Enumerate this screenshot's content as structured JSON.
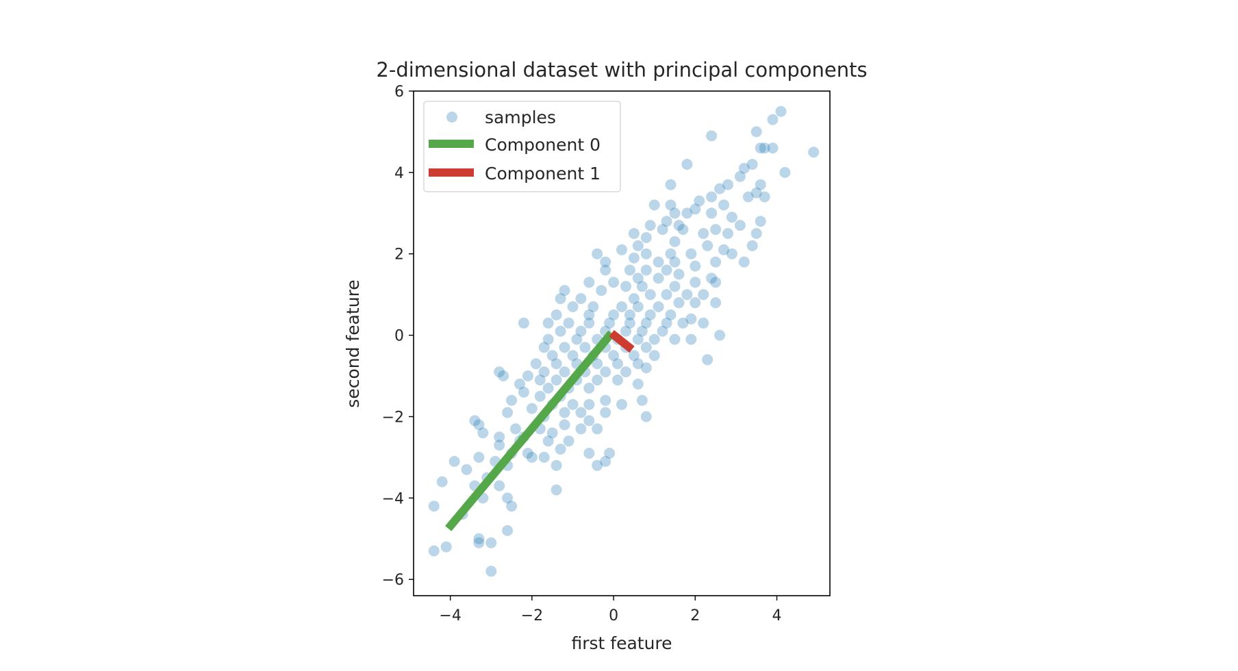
{
  "chart_data": {
    "type": "scatter",
    "title": "2-dimensional dataset with principal components",
    "xlabel": "first feature",
    "ylabel": "second feature",
    "xlim": [
      -4.9,
      5.3
    ],
    "ylim": [
      -6.4,
      6.0
    ],
    "xticks": [
      -4,
      -2,
      0,
      2,
      4
    ],
    "yticks": [
      -6,
      -4,
      -2,
      0,
      2,
      4,
      6
    ],
    "xtick_labels": [
      "−4",
      "−2",
      "0",
      "2",
      "4"
    ],
    "ytick_labels": [
      "−6",
      "−4",
      "−2",
      "0",
      "2",
      "4",
      "6"
    ],
    "grid": false,
    "legend_placement": "upper-left",
    "colors": {
      "samples": "#1f77b4",
      "component0": "#55a84a",
      "component1": "#cc3c33",
      "axes": "#000000"
    },
    "samples": {
      "name": "samples",
      "alpha": 0.3,
      "points": [
        [
          4.1,
          5.5
        ],
        [
          3.9,
          5.3
        ],
        [
          3.5,
          5.0
        ],
        [
          4.9,
          4.5
        ],
        [
          3.6,
          4.6
        ],
        [
          3.9,
          4.6
        ],
        [
          3.7,
          4.6
        ],
        [
          2.4,
          4.9
        ],
        [
          1.8,
          4.2
        ],
        [
          3.4,
          4.2
        ],
        [
          3.2,
          4.1
        ],
        [
          4.2,
          4.0
        ],
        [
          3.1,
          3.9
        ],
        [
          3.6,
          3.7
        ],
        [
          2.6,
          3.6
        ],
        [
          2.8,
          3.7
        ],
        [
          1.4,
          3.7
        ],
        [
          3.5,
          3.5
        ],
        [
          2.4,
          3.4
        ],
        [
          3.7,
          3.4
        ],
        [
          3.3,
          3.4
        ],
        [
          2.1,
          3.3
        ],
        [
          2.7,
          3.2
        ],
        [
          1.0,
          3.2
        ],
        [
          1.4,
          3.2
        ],
        [
          2.0,
          3.1
        ],
        [
          2.4,
          3.0
        ],
        [
          1.8,
          3.0
        ],
        [
          1.5,
          3.0
        ],
        [
          2.9,
          2.9
        ],
        [
          3.6,
          2.8
        ],
        [
          1.3,
          2.8
        ],
        [
          3.1,
          2.7
        ],
        [
          1.6,
          2.7
        ],
        [
          0.9,
          2.7
        ],
        [
          2.5,
          2.6
        ],
        [
          1.7,
          2.6
        ],
        [
          2.2,
          2.5
        ],
        [
          3.5,
          2.5
        ],
        [
          2.8,
          2.5
        ],
        [
          1.2,
          2.6
        ],
        [
          0.5,
          2.5
        ],
        [
          2.3,
          2.2
        ],
        [
          1.5,
          2.3
        ],
        [
          0.8,
          2.4
        ],
        [
          0.6,
          2.2
        ],
        [
          2.7,
          2.1
        ],
        [
          1.9,
          2.0
        ],
        [
          1.4,
          2.0
        ],
        [
          0.8,
          2.0
        ],
        [
          0.2,
          2.1
        ],
        [
          -0.4,
          2.0
        ],
        [
          3.4,
          2.2
        ],
        [
          2.9,
          2.0
        ],
        [
          2.5,
          1.8
        ],
        [
          1.5,
          1.8
        ],
        [
          0.5,
          1.9
        ],
        [
          -0.2,
          1.8
        ],
        [
          1.1,
          1.8
        ],
        [
          3.2,
          1.8
        ],
        [
          2.0,
          1.7
        ],
        [
          1.3,
          1.6
        ],
        [
          0.8,
          1.6
        ],
        [
          0.4,
          1.6
        ],
        [
          -0.2,
          1.6
        ],
        [
          2.4,
          1.4
        ],
        [
          1.6,
          1.5
        ],
        [
          1.1,
          1.4
        ],
        [
          0.6,
          1.4
        ],
        [
          0.0,
          1.3
        ],
        [
          -0.6,
          1.3
        ],
        [
          2.5,
          1.3
        ],
        [
          2.0,
          1.3
        ],
        [
          1.5,
          1.2
        ],
        [
          0.7,
          1.2
        ],
        [
          0.3,
          1.2
        ],
        [
          -1.2,
          1.1
        ],
        [
          -0.3,
          1.1
        ],
        [
          2.2,
          1.0
        ],
        [
          1.8,
          1.0
        ],
        [
          1.3,
          1.0
        ],
        [
          0.9,
          1.0
        ],
        [
          0.5,
          0.9
        ],
        [
          -0.8,
          0.9
        ],
        [
          -1.3,
          0.9
        ],
        [
          2.5,
          0.8
        ],
        [
          2.0,
          0.8
        ],
        [
          1.6,
          0.8
        ],
        [
          1.1,
          0.7
        ],
        [
          0.6,
          0.7
        ],
        [
          0.2,
          0.7
        ],
        [
          -0.5,
          0.7
        ],
        [
          -1.0,
          0.7
        ],
        [
          1.4,
          0.5
        ],
        [
          0.9,
          0.5
        ],
        [
          0.4,
          0.5
        ],
        [
          0.0,
          0.5
        ],
        [
          -0.6,
          0.5
        ],
        [
          -1.4,
          0.5
        ],
        [
          1.9,
          0.4
        ],
        [
          1.3,
          0.3
        ],
        [
          0.8,
          0.3
        ],
        [
          0.4,
          0.3
        ],
        [
          -0.1,
          0.3
        ],
        [
          -0.6,
          0.3
        ],
        [
          -1.1,
          0.3
        ],
        [
          -1.6,
          0.3
        ],
        [
          -2.2,
          0.3
        ],
        [
          2.2,
          0.3
        ],
        [
          1.7,
          0.3
        ],
        [
          1.2,
          0.1
        ],
        [
          0.7,
          0.1
        ],
        [
          0.3,
          0.1
        ],
        [
          -0.2,
          0.1
        ],
        [
          -0.8,
          0.1
        ],
        [
          -1.3,
          0.1
        ],
        [
          2.6,
          0.0
        ],
        [
          1.5,
          -0.1
        ],
        [
          1.0,
          -0.1
        ],
        [
          0.6,
          -0.1
        ],
        [
          0.1,
          -0.1
        ],
        [
          -0.4,
          -0.1
        ],
        [
          -0.9,
          -0.1
        ],
        [
          -1.6,
          -0.1
        ],
        [
          1.9,
          -0.1
        ],
        [
          0.8,
          -0.3
        ],
        [
          0.3,
          -0.3
        ],
        [
          -0.2,
          -0.3
        ],
        [
          -0.7,
          -0.3
        ],
        [
          -1.2,
          -0.3
        ],
        [
          -1.7,
          -0.3
        ],
        [
          1.0,
          -0.5
        ],
        [
          0.5,
          -0.5
        ],
        [
          0.0,
          -0.5
        ],
        [
          -0.5,
          -0.5
        ],
        [
          -1.0,
          -0.5
        ],
        [
          -1.5,
          -0.5
        ],
        [
          2.3,
          -0.6
        ],
        [
          0.6,
          -0.7
        ],
        [
          0.1,
          -0.7
        ],
        [
          -0.4,
          -0.7
        ],
        [
          -0.9,
          -0.7
        ],
        [
          -1.4,
          -0.7
        ],
        [
          -1.9,
          -0.7
        ],
        [
          0.8,
          -0.8
        ],
        [
          0.3,
          -0.9
        ],
        [
          -0.2,
          -0.9
        ],
        [
          -0.7,
          -0.9
        ],
        [
          -1.2,
          -0.9
        ],
        [
          -1.7,
          -0.9
        ],
        [
          -2.1,
          -1.0
        ],
        [
          -2.8,
          -0.9
        ],
        [
          -2.7,
          -1.0
        ],
        [
          0.1,
          -1.1
        ],
        [
          -0.4,
          -1.1
        ],
        [
          -0.9,
          -1.1
        ],
        [
          -1.4,
          -1.1
        ],
        [
          -1.8,
          -1.1
        ],
        [
          -2.3,
          -1.2
        ],
        [
          0.6,
          -1.2
        ],
        [
          -0.6,
          -1.3
        ],
        [
          -1.1,
          -1.3
        ],
        [
          -1.6,
          -1.3
        ],
        [
          -2.2,
          -1.4
        ],
        [
          -1.3,
          -1.5
        ],
        [
          -1.8,
          -1.5
        ],
        [
          -2.5,
          -1.6
        ],
        [
          0.7,
          -1.6
        ],
        [
          -0.2,
          -1.6
        ],
        [
          -0.6,
          -1.7
        ],
        [
          -1.0,
          -1.7
        ],
        [
          -1.5,
          -1.7
        ],
        [
          0.2,
          -1.7
        ],
        [
          -2.0,
          -1.8
        ],
        [
          -2.6,
          -1.9
        ],
        [
          -0.8,
          -1.9
        ],
        [
          -1.2,
          -1.9
        ],
        [
          -0.2,
          -1.9
        ],
        [
          -1.7,
          -2.0
        ],
        [
          0.8,
          -2.0
        ],
        [
          -3.4,
          -2.1
        ],
        [
          -0.6,
          -2.1
        ],
        [
          -1.2,
          -2.2
        ],
        [
          -1.8,
          -2.3
        ],
        [
          -2.4,
          -2.3
        ],
        [
          -3.3,
          -2.2
        ],
        [
          -0.4,
          -2.3
        ],
        [
          -0.8,
          -2.3
        ],
        [
          -1.5,
          -2.4
        ],
        [
          -2.2,
          -2.5
        ],
        [
          -2.8,
          -2.5
        ],
        [
          -3.2,
          -2.4
        ],
        [
          -1.1,
          -2.6
        ],
        [
          -1.6,
          -2.6
        ],
        [
          -2.3,
          -2.6
        ],
        [
          -2.8,
          -2.7
        ],
        [
          -1.3,
          -2.8
        ],
        [
          -2.1,
          -2.9
        ],
        [
          -1.7,
          -3.0
        ],
        [
          -2.5,
          -2.9
        ],
        [
          -3.3,
          -3.0
        ],
        [
          -0.1,
          -2.9
        ],
        [
          -0.6,
          -2.9
        ],
        [
          -2.0,
          -3.0
        ],
        [
          -3.9,
          -3.1
        ],
        [
          -2.9,
          -3.1
        ],
        [
          -1.4,
          -3.2
        ],
        [
          -3.6,
          -3.3
        ],
        [
          -2.6,
          -3.2
        ],
        [
          -0.4,
          -3.2
        ],
        [
          -0.2,
          -3.1
        ],
        [
          -3.1,
          -3.5
        ],
        [
          -2.8,
          -3.7
        ],
        [
          -3.4,
          -3.7
        ],
        [
          -4.2,
          -3.6
        ],
        [
          -1.4,
          -3.8
        ],
        [
          -2.6,
          -4.0
        ],
        [
          -3.2,
          -4.0
        ],
        [
          -4.4,
          -4.2
        ],
        [
          -2.5,
          -4.2
        ],
        [
          -3.7,
          -4.4
        ],
        [
          -2.6,
          -4.8
        ],
        [
          -3.3,
          -5.0
        ],
        [
          -3.0,
          -5.1
        ],
        [
          -3.3,
          -5.1
        ],
        [
          -4.1,
          -5.2
        ],
        [
          -4.4,
          -5.3
        ],
        [
          -3.0,
          -5.8
        ]
      ]
    },
    "components": [
      {
        "name": "Component 0",
        "x": [
          -0.05,
          -4.05
        ],
        "y": [
          0.05,
          -4.75
        ]
      },
      {
        "name": "Component 1",
        "x": [
          -0.05,
          0.45
        ],
        "y": [
          0.05,
          -0.35
        ]
      }
    ]
  }
}
